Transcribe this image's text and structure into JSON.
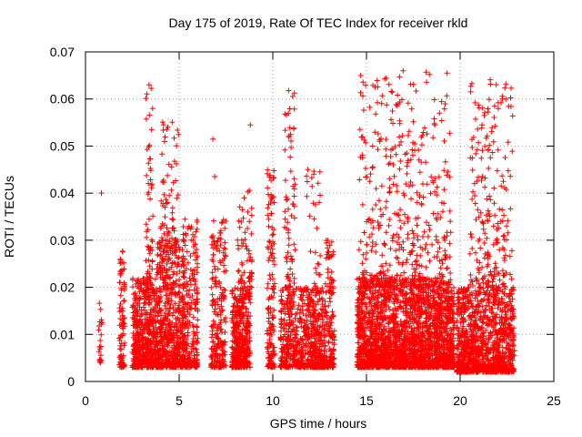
{
  "chart_data": {
    "type": "scatter",
    "title": "Day 175 of 2019, Rate Of TEC Index for receiver rkld",
    "xlabel": "GPS time / hours",
    "ylabel": "ROTI / TECUs",
    "xlim": [
      0,
      25
    ],
    "ylim": [
      0,
      0.07
    ],
    "xticks": [
      "0",
      "5",
      "10",
      "15",
      "20",
      "25"
    ],
    "yticks": [
      "0",
      "0.01",
      "0.02",
      "0.03",
      "0.04",
      "0.05",
      "0.06",
      "0.07"
    ],
    "grid": true,
    "marker": "+",
    "color": "#ff0000",
    "clusters": [
      {
        "x": [
          0.7,
          0.9
        ],
        "ymin": 0.004,
        "ymax": 0.018,
        "n": 22
      },
      {
        "x": [
          1.8,
          2.1
        ],
        "ymin": 0.003,
        "ymax": 0.028,
        "n": 90
      },
      {
        "x": [
          2.5,
          3.8
        ],
        "ymin": 0.003,
        "ymax": 0.022,
        "n": 520
      },
      {
        "x": [
          3.2,
          3.6
        ],
        "ymin": 0.02,
        "ymax": 0.063,
        "n": 60
      },
      {
        "x": [
          3.8,
          5.3
        ],
        "ymin": 0.003,
        "ymax": 0.03,
        "n": 600
      },
      {
        "x": [
          4.0,
          5.0
        ],
        "ymin": 0.03,
        "ymax": 0.056,
        "n": 60
      },
      {
        "x": [
          5.2,
          6.0
        ],
        "ymin": 0.003,
        "ymax": 0.035,
        "n": 220
      },
      {
        "x": [
          6.7,
          7.5
        ],
        "ymin": 0.003,
        "ymax": 0.035,
        "n": 220
      },
      {
        "x": [
          7.8,
          8.8
        ],
        "ymin": 0.003,
        "ymax": 0.02,
        "n": 420
      },
      {
        "x": [
          8.1,
          8.9
        ],
        "ymin": 0.02,
        "ymax": 0.041,
        "n": 60
      },
      {
        "x": [
          9.7,
          10.1
        ],
        "ymin": 0.003,
        "ymax": 0.045,
        "n": 140
      },
      {
        "x": [
          10.4,
          12.8
        ],
        "ymin": 0.003,
        "ymax": 0.02,
        "n": 650
      },
      {
        "x": [
          10.6,
          11.2
        ],
        "ymin": 0.02,
        "ymax": 0.063,
        "n": 70
      },
      {
        "x": [
          11.8,
          12.6
        ],
        "ymin": 0.01,
        "ymax": 0.046,
        "n": 60
      },
      {
        "x": [
          12.8,
          13.3
        ],
        "ymin": 0.003,
        "ymax": 0.03,
        "n": 140
      },
      {
        "x": [
          14.5,
          19.7
        ],
        "ymin": 0.003,
        "ymax": 0.022,
        "n": 2300
      },
      {
        "x": [
          14.6,
          19.5
        ],
        "ymin": 0.02,
        "ymax": 0.066,
        "n": 420
      },
      {
        "x": [
          19.8,
          22.9
        ],
        "ymin": 0.002,
        "ymax": 0.02,
        "n": 1100
      },
      {
        "x": [
          20.5,
          22.8
        ],
        "ymin": 0.02,
        "ymax": 0.065,
        "n": 210
      }
    ],
    "notable_points": [
      {
        "x": 0.85,
        "y": 0.04
      },
      {
        "x": 6.8,
        "y": 0.0515
      },
      {
        "x": 6.9,
        "y": 0.0435
      },
      {
        "x": 8.8,
        "y": 0.0545
      }
    ]
  }
}
